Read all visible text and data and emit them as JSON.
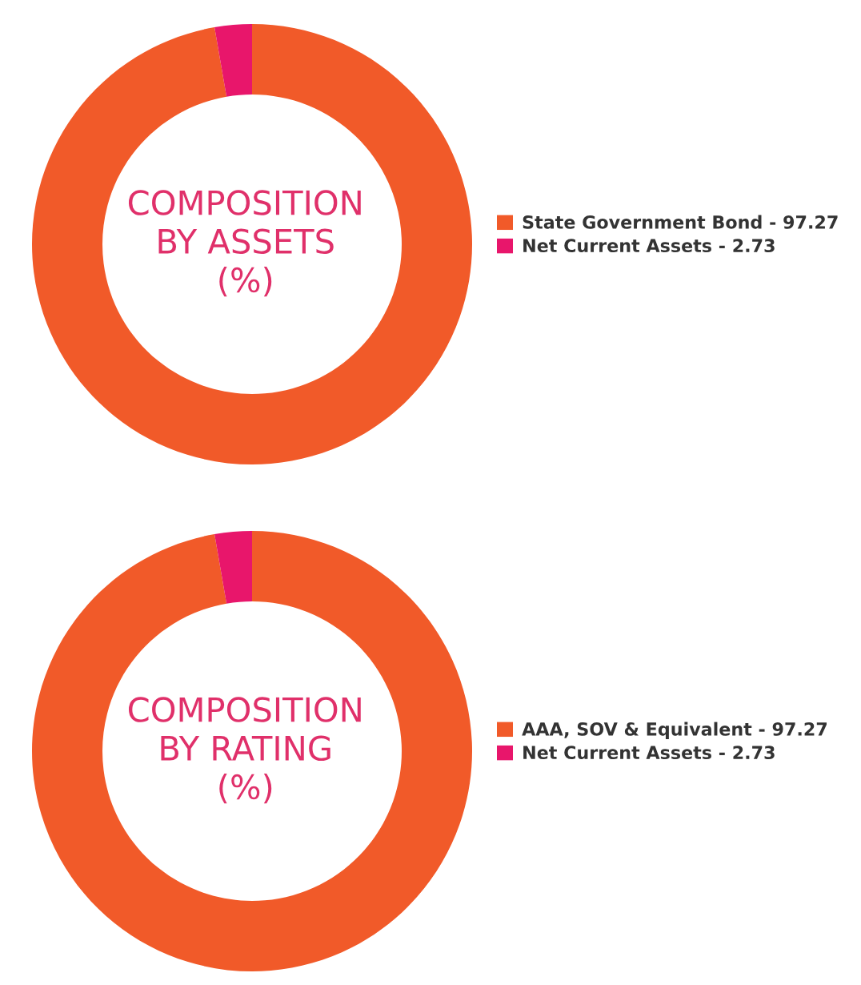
{
  "chart_data": [
    {
      "type": "donut",
      "title": "COMPOSITION\nBY ASSETS\n(%)",
      "categories": [
        "State Government Bond - 97.27",
        "Net Current Assets - 2.73"
      ],
      "values": [
        97.27,
        2.73
      ],
      "colors": [
        "#f15a29",
        "#e8166b"
      ],
      "legend": "right"
    },
    {
      "type": "donut",
      "title": "COMPOSITION\nBY RATING\n(%)",
      "categories": [
        "AAA, SOV & Equivalent - 97.27",
        "Net Current Assets - 2.73"
      ],
      "values": [
        97.27,
        2.73
      ],
      "colors": [
        "#f15a29",
        "#e8166b"
      ],
      "legend": "right"
    }
  ]
}
